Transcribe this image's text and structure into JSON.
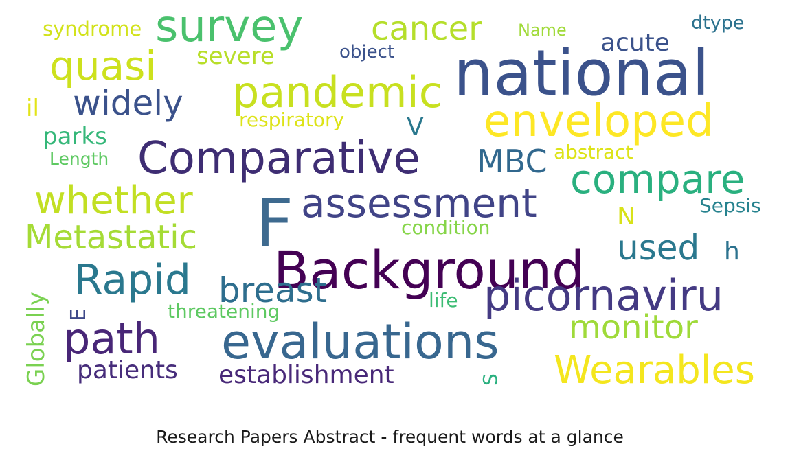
{
  "chart_data": {
    "type": "wordcloud",
    "title": "Research Papers Abstract - frequent words at a glance",
    "words": [
      {
        "text": "national",
        "weight": 100,
        "color": "#3b528b",
        "vertical": false
      },
      {
        "text": "F",
        "weight": 98,
        "color": "#3e6a8f",
        "vertical": false
      },
      {
        "text": "Background",
        "weight": 78,
        "color": "#440154",
        "vertical": false
      },
      {
        "text": "evaluations",
        "weight": 72,
        "color": "#38678f",
        "vertical": false
      },
      {
        "text": "picornaviru",
        "weight": 66,
        "color": "#443a83",
        "vertical": false
      },
      {
        "text": "Comparative",
        "weight": 68,
        "color": "#3e2d73",
        "vertical": false
      },
      {
        "text": "assessment",
        "weight": 60,
        "color": "#414487",
        "vertical": false
      },
      {
        "text": "enveloped",
        "weight": 66,
        "color": "#fde725",
        "vertical": false
      },
      {
        "text": "survey",
        "weight": 68,
        "color": "#4ac16d",
        "vertical": false
      },
      {
        "text": "path",
        "weight": 64,
        "color": "#482677",
        "vertical": false
      },
      {
        "text": "pandemic",
        "weight": 64,
        "color": "#c8e020",
        "vertical": false
      },
      {
        "text": "Rapid",
        "weight": 62,
        "color": "#2a788e",
        "vertical": false
      },
      {
        "text": "quasi",
        "weight": 60,
        "color": "#cde11d",
        "vertical": false
      },
      {
        "text": "compare",
        "weight": 60,
        "color": "#2ab07f",
        "vertical": false
      },
      {
        "text": "whether",
        "weight": 58,
        "color": "#c2df23",
        "vertical": false
      },
      {
        "text": "Wearables",
        "weight": 58,
        "color": "#f4e61e",
        "vertical": false
      },
      {
        "text": "Metastatic",
        "weight": 50,
        "color": "#a5db36",
        "vertical": false
      },
      {
        "text": "widely",
        "weight": 50,
        "color": "#3b528b",
        "vertical": false
      },
      {
        "text": "breast",
        "weight": 50,
        "color": "#2e6e8e",
        "vertical": false
      },
      {
        "text": "cancer",
        "weight": 50,
        "color": "#b5de2b",
        "vertical": false
      },
      {
        "text": "used",
        "weight": 50,
        "color": "#2a788e",
        "vertical": false
      },
      {
        "text": "monitor",
        "weight": 48,
        "color": "#9fda3a",
        "vertical": false
      },
      {
        "text": "MBC",
        "weight": 46,
        "color": "#31688e",
        "vertical": false
      },
      {
        "text": "establishment",
        "weight": 38,
        "color": "#482878",
        "vertical": false
      },
      {
        "text": "patients",
        "weight": 38,
        "color": "#472d7b",
        "vertical": false
      },
      {
        "text": "acute",
        "weight": 36,
        "color": "#3b528b",
        "vertical": false
      },
      {
        "text": "severe",
        "weight": 34,
        "color": "#b8de29",
        "vertical": false
      },
      {
        "text": "parks",
        "weight": 34,
        "color": "#35b779",
        "vertical": false
      },
      {
        "text": "syndrome",
        "weight": 30,
        "color": "#d2e21b",
        "vertical": false
      },
      {
        "text": "respiratory",
        "weight": 28,
        "color": "#dde318",
        "vertical": false
      },
      {
        "text": "V",
        "weight": 36,
        "color": "#2a788e",
        "vertical": false
      },
      {
        "text": "N",
        "weight": 36,
        "color": "#d8e219",
        "vertical": false
      },
      {
        "text": "h",
        "weight": 36,
        "color": "#2c728e",
        "vertical": false
      },
      {
        "text": "il",
        "weight": 34,
        "color": "#e2e418",
        "vertical": false
      },
      {
        "text": "object",
        "weight": 26,
        "color": "#3b528b",
        "vertical": false
      },
      {
        "text": "Name",
        "weight": 25,
        "color": "#a0da39",
        "vertical": false
      },
      {
        "text": "dtype",
        "weight": 27,
        "color": "#2c728e",
        "vertical": false
      },
      {
        "text": "abstract",
        "weight": 28,
        "color": "#dde318",
        "vertical": false
      },
      {
        "text": "Length",
        "weight": 25,
        "color": "#5ec962",
        "vertical": false
      },
      {
        "text": "Sepsis",
        "weight": 28,
        "color": "#26828e",
        "vertical": false
      },
      {
        "text": "condition",
        "weight": 28,
        "color": "#86d549",
        "vertical": false
      },
      {
        "text": "life",
        "weight": 28,
        "color": "#3dbc74",
        "vertical": false
      },
      {
        "text": "threatening",
        "weight": 28,
        "color": "#5ec962",
        "vertical": false
      },
      {
        "text": "Globally",
        "weight": 34,
        "color": "#7ad151",
        "vertical": true
      },
      {
        "text": "E",
        "weight": 30,
        "color": "#3e4989",
        "vertical": true
      },
      {
        "text": "S",
        "weight": 28,
        "color": "#2ab07f",
        "vertical": true
      }
    ]
  }
}
